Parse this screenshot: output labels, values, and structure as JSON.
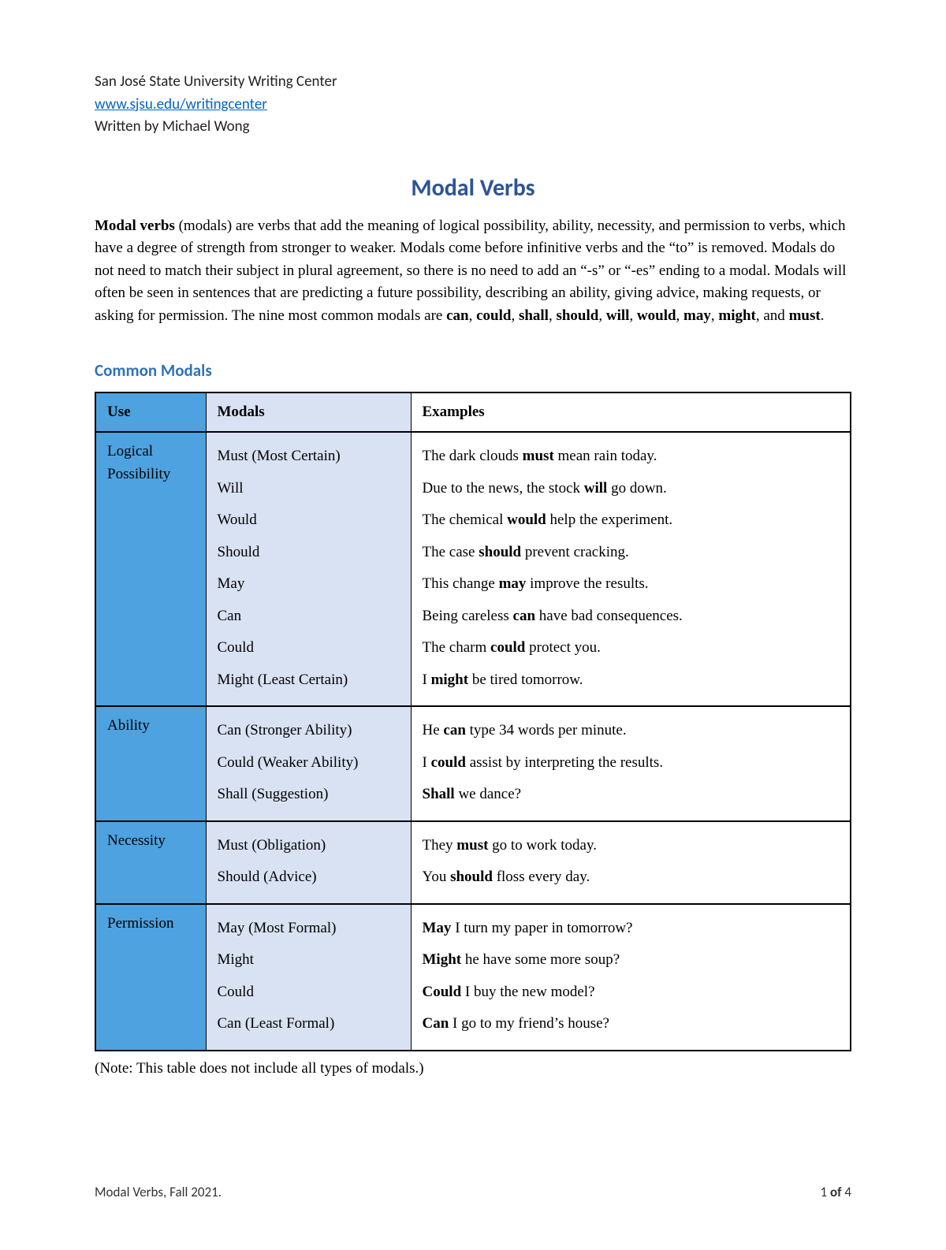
{
  "header": {
    "org": "San José State University Writing Center",
    "link": "www.sjsu.edu/writingcenter",
    "author": "Written by Michael Wong"
  },
  "title": "Modal Verbs",
  "intro_html": "<b>Modal verbs</b> (modals) are verbs that add the meaning of logical possibility, ability, necessity, and permission to verbs, which have a degree of strength from stronger to weaker. Modals come before infinitive verbs and the “to” is removed. Modals do not need to match their subject in plural agreement, so there is no need to add an “-s” or “-es” ending to a modal. Modals will often be seen in sentences that are predicting a future possibility, describing an ability, giving advice, making requests, or asking for permission. The nine most common modals are <b>can</b>, <b>could</b>, <b>shall</b>, <b>should</b>, <b>will</b>, <b>would</b>, <b>may</b>, <b>might</b>, and <b>must</b>.",
  "section_heading": "Common Modals",
  "table": {
    "columns": [
      "Use",
      "Modals",
      "Examples"
    ],
    "col_bg": [
      "#4da2df",
      "#d8e2f3",
      "#ffffff"
    ],
    "header_bg": [
      "#4da2df",
      "#d8e2f3",
      "#ffffff"
    ],
    "border_color": "#000000",
    "rows": [
      {
        "use": "Logical Possibility",
        "modals": [
          "Must (Most Certain)",
          "Will",
          "Would",
          "Should",
          "May",
          "Can",
          "Could",
          "Might (Least Certain)"
        ],
        "examples_html": [
          "The dark clouds <b>must</b> mean rain today.",
          "Due to the news, the stock <b>will</b> go down.",
          "The chemical <b>would</b> help the experiment.",
          "The case <b>should</b> prevent cracking.",
          "This change <b>may</b> improve the results.",
          "Being careless <b>can</b> have bad consequences.",
          "The charm <b>could</b> protect you.",
          "I <b>might</b> be tired tomorrow."
        ]
      },
      {
        "use": "Ability",
        "modals": [
          "Can (Stronger Ability)",
          "Could (Weaker Ability)",
          "Shall (Suggestion)"
        ],
        "examples_html": [
          "He <b>can</b> type 34 words per minute.",
          "I <b>could</b> assist by interpreting the results.",
          "<b>Shall</b> we dance?"
        ]
      },
      {
        "use": "Necessity",
        "modals": [
          "Must (Obligation)",
          "Should (Advice)"
        ],
        "examples_html": [
          "They <b>must</b> go to work today.",
          "You <b>should</b> floss every day."
        ]
      },
      {
        "use": "Permission",
        "modals": [
          "May (Most Formal)",
          "Might",
          "Could",
          "Can (Least Formal)"
        ],
        "examples_html": [
          "<b>May</b> I turn my paper in tomorrow?",
          "<b>Might</b> he have some more soup?",
          "<b>Could</b> I buy the new model?",
          "<b>Can</b> I go to my friend’s house?"
        ]
      }
    ]
  },
  "note": "(Note: This table does not include all types of modals.)",
  "footer": {
    "left": "Modal Verbs, Fall 2021.",
    "page": "1",
    "of_label": "of",
    "total": "4"
  }
}
